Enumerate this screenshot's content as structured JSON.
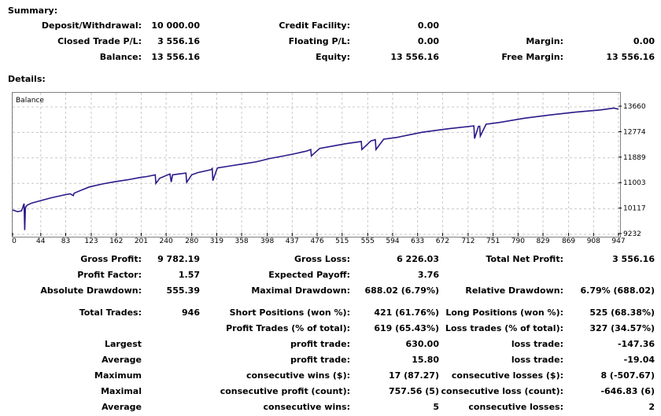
{
  "summary": {
    "title": "Summary:",
    "deposit_label": "Deposit/Withdrawal:",
    "deposit_value": "10 000.00",
    "credit_label": "Credit Facility:",
    "credit_value": "0.00",
    "closed_label": "Closed Trade P/L:",
    "closed_value": "3 556.16",
    "floating_label": "Floating P/L:",
    "floating_value": "0.00",
    "margin_label": "Margin:",
    "margin_value": "0.00",
    "balance_label": "Balance:",
    "balance_value": "13 556.16",
    "equity_label": "Equity:",
    "equity_value": "13 556.16",
    "free_margin_label": "Free Margin:",
    "free_margin_value": "13 556.16"
  },
  "details": {
    "title": "Details:",
    "gross_profit_label": "Gross Profit:",
    "gross_profit_value": "9 782.19",
    "gross_loss_label": "Gross Loss:",
    "gross_loss_value": "6 226.03",
    "net_profit_label": "Total Net Profit:",
    "net_profit_value": "3 556.16",
    "profit_factor_label": "Profit Factor:",
    "profit_factor_value": "1.57",
    "expected_payoff_label": "Expected Payoff:",
    "expected_payoff_value": "3.76",
    "abs_dd_label": "Absolute Drawdown:",
    "abs_dd_value": "555.39",
    "max_dd_label": "Maximal Drawdown:",
    "max_dd_value": "688.02 (6.79%)",
    "rel_dd_label": "Relative Drawdown:",
    "rel_dd_value": "6.79% (688.02)",
    "total_trades_label": "Total Trades:",
    "total_trades_value": "946",
    "short_label": "Short Positions (won %):",
    "short_value": "421 (61.76%)",
    "long_label": "Long Positions (won %):",
    "long_value": "525 (68.38%)",
    "profit_trades_label": "Profit Trades (% of total):",
    "profit_trades_value": "619 (65.43%)",
    "loss_trades_label": "Loss trades (% of total):",
    "loss_trades_value": "327 (34.57%)",
    "largest_label": "Largest",
    "largest_profit_label": "profit trade:",
    "largest_profit_value": "630.00",
    "largest_loss_label": "loss trade:",
    "largest_loss_value": "-147.36",
    "average_label": "Average",
    "average_profit_label": "profit trade:",
    "average_profit_value": "15.80",
    "average_loss_label": "loss trade:",
    "average_loss_value": "-19.04",
    "maximum_label": "Maximum",
    "max_cons_wins_label": "consecutive wins ($):",
    "max_cons_wins_value": "17 (87.27)",
    "max_cons_losses_label": "consecutive losses ($):",
    "max_cons_losses_value": "8 (-507.67)",
    "maximal_label": "Maximal",
    "maximal_cons_profit_label": "consecutive profit (count):",
    "maximal_cons_profit_value": "757.56 (5)",
    "maximal_cons_loss_label": "consecutive loss (count):",
    "maximal_cons_loss_value": "-646.83 (6)",
    "average2_label": "Average",
    "avg_cons_wins_label": "consecutive wins:",
    "avg_cons_wins_value": "5",
    "avg_cons_losses_label": "consecutive losses:",
    "avg_cons_losses_value": "2"
  },
  "chart_data": {
    "type": "line",
    "legend": "Balance",
    "line_color": "#2a1a8a",
    "grid": true,
    "x_ticks": [
      "0",
      "44",
      "83",
      "123",
      "162",
      "201",
      "240",
      "280",
      "319",
      "358",
      "398",
      "437",
      "476",
      "515",
      "555",
      "594",
      "633",
      "672",
      "712",
      "751",
      "790",
      "829",
      "869",
      "908",
      "947"
    ],
    "y_ticks": [
      "13660",
      "12774",
      "11889",
      "11003",
      "10117",
      "9232"
    ],
    "xlim": [
      0,
      947
    ],
    "ylim": [
      9232,
      13660
    ],
    "series": [
      {
        "x": [
          0,
          8,
          14,
          18,
          19,
          20,
          21,
          23,
          30,
          40,
          60,
          80,
          90,
          95,
          96,
          100,
          120,
          140,
          160,
          180,
          200,
          210,
          223,
          224,
          230,
          246,
          248,
          250,
          260,
          271,
          272,
          280,
          290,
          300,
          310,
          312,
          313,
          320,
          340,
          360,
          380,
          390,
          400,
          420,
          440,
          460,
          466,
          467,
          480,
          500,
          520,
          545,
          546,
          560,
          567,
          568,
          580,
          600,
          640,
          680,
          721,
          722,
          728,
          730,
          731,
          740,
          760,
          800,
          840,
          880,
          920,
          940,
          947
        ],
        "y": [
          10080,
          10020,
          10050,
          10300,
          9380,
          10150,
          10200,
          10250,
          10320,
          10380,
          10500,
          10600,
          10640,
          10580,
          10660,
          10700,
          10880,
          10980,
          11060,
          11130,
          11210,
          11240,
          11300,
          11000,
          11180,
          11330,
          11050,
          11300,
          11330,
          11360,
          11040,
          11300,
          11380,
          11430,
          11480,
          11520,
          11100,
          11540,
          11610,
          11680,
          11750,
          11800,
          11860,
          11940,
          12030,
          12130,
          12180,
          11960,
          12220,
          12300,
          12380,
          12460,
          12180,
          12480,
          12520,
          12180,
          12540,
          12600,
          12780,
          12900,
          13000,
          12560,
          12980,
          12990,
          12650,
          13060,
          13120,
          13270,
          13380,
          13480,
          13560,
          13620,
          13580
        ]
      }
    ]
  }
}
